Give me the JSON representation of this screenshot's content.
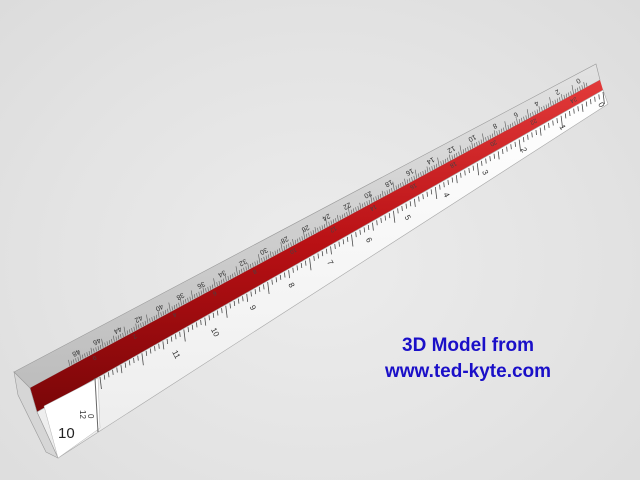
{
  "scene": {
    "description_free": true,
    "colors": {
      "background": "#e6e6e6",
      "upper_face": "#c8c8c8",
      "lower_face": "#f7f7f7",
      "red_groove": "#c0161a",
      "tick": "#555555",
      "credit_text": "#1a0fc8"
    },
    "end_face_label": "10",
    "end_face_small_a": "12",
    "end_face_small_b": "0",
    "upper_labels": [
      "48",
      "46",
      "44",
      "42",
      "40",
      "38",
      "36",
      "34",
      "32",
      "30",
      "28",
      "26",
      "24",
      "22",
      "20",
      "18",
      "16",
      "14",
      "12",
      "10",
      "8",
      "6",
      "4",
      "2",
      "0"
    ],
    "upper_inner_labels": [
      "0",
      "2",
      "4",
      "6",
      "8",
      "10",
      "12",
      "14",
      "16",
      "18",
      "20",
      "22",
      "24"
    ],
    "lower_labels": [
      "11",
      "10",
      "9",
      "8",
      "7",
      "6",
      "5",
      "4",
      "3",
      "2",
      "1",
      "0"
    ]
  },
  "credit": {
    "line1": "3D Model from",
    "line2": "www.ted-kyte.com"
  }
}
